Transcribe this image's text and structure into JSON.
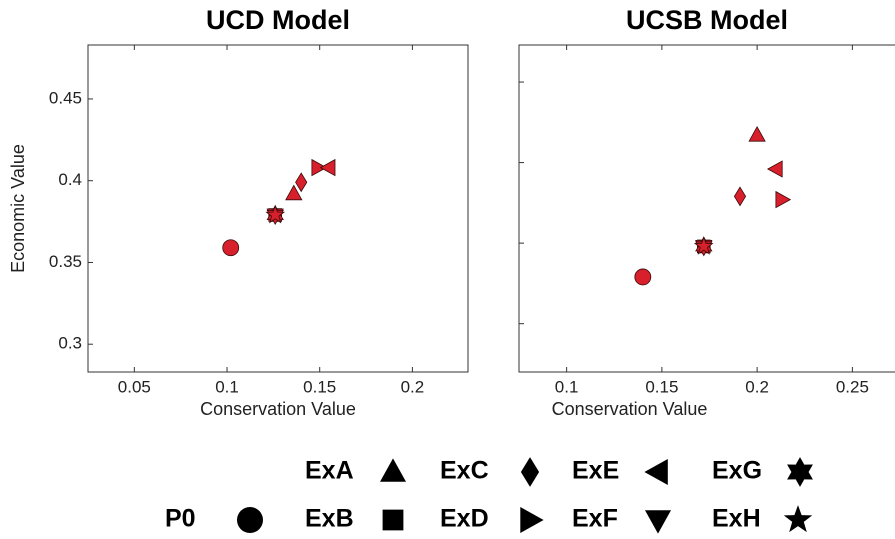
{
  "chart_data": [
    {
      "type": "scatter",
      "title": "UCD Model",
      "xlabel": "Conservation Value",
      "ylabel": "Economic Value",
      "xlim": [
        0.025,
        0.23
      ],
      "xticks": [
        0.05,
        0.1,
        0.15,
        0.2
      ],
      "ylim": [
        0.283,
        0.483
      ],
      "yticks": [
        0.3,
        0.35,
        0.4,
        0.45
      ],
      "ytick_labels": true,
      "series": [
        {
          "name": "P0",
          "marker": "circle",
          "color": "#d7202b",
          "x": [
            0.102
          ],
          "values": [
            0.359
          ]
        },
        {
          "name": "ExA",
          "marker": "triangle-up",
          "color": "#d7202b",
          "x": [
            0.136
          ],
          "values": [
            0.392
          ]
        },
        {
          "name": "ExB",
          "marker": "square",
          "color": "#d7202b",
          "x": [
            0.126
          ],
          "values": [
            0.379
          ]
        },
        {
          "name": "ExC",
          "marker": "diamond",
          "color": "#d7202b",
          "x": [
            0.14
          ],
          "values": [
            0.399
          ]
        },
        {
          "name": "ExD",
          "marker": "triangle-right",
          "color": "#d7202b",
          "x": [
            0.149
          ],
          "values": [
            0.408
          ]
        },
        {
          "name": "ExE",
          "marker": "triangle-left",
          "color": "#d7202b",
          "x": [
            0.155
          ],
          "values": [
            0.408
          ]
        },
        {
          "name": "ExF",
          "marker": "triangle-down",
          "color": "#d7202b",
          "x": [
            0.126
          ],
          "values": [
            0.379
          ]
        },
        {
          "name": "ExG",
          "marker": "hexagram",
          "color": "#d7202b",
          "x": [
            0.126
          ],
          "values": [
            0.379
          ]
        },
        {
          "name": "ExH",
          "marker": "star",
          "color": "#d7202b",
          "x": [
            0.126
          ],
          "values": [
            0.379
          ]
        }
      ]
    },
    {
      "type": "scatter",
      "title": "UCSB Model",
      "xlabel": "Conservation Value",
      "xlim": [
        0.075,
        0.275
      ],
      "xticks": [
        0.1,
        0.15,
        0.2,
        0.25
      ],
      "ylim": [
        0.32,
        0.523
      ],
      "yticks": [
        0.35,
        0.4,
        0.45,
        0.5
      ],
      "ytick_labels": false,
      "series": [
        {
          "name": "P0",
          "marker": "circle",
          "color": "#d7202b",
          "x": [
            0.14
          ],
          "values": [
            0.379
          ]
        },
        {
          "name": "ExA",
          "marker": "triangle-up",
          "color": "#d7202b",
          "x": [
            0.2
          ],
          "values": [
            0.467
          ]
        },
        {
          "name": "ExB",
          "marker": "square",
          "color": "#d7202b",
          "x": [
            0.172
          ],
          "values": [
            0.398
          ]
        },
        {
          "name": "ExC",
          "marker": "diamond",
          "color": "#d7202b",
          "x": [
            0.191
          ],
          "values": [
            0.429
          ]
        },
        {
          "name": "ExD",
          "marker": "triangle-right",
          "color": "#d7202b",
          "x": [
            0.213
          ],
          "values": [
            0.427
          ]
        },
        {
          "name": "ExE",
          "marker": "triangle-left",
          "color": "#d7202b",
          "x": [
            0.21
          ],
          "values": [
            0.446
          ]
        },
        {
          "name": "ExF",
          "marker": "triangle-down",
          "color": "#d7202b",
          "x": [
            0.172
          ],
          "values": [
            0.398
          ]
        },
        {
          "name": "ExG",
          "marker": "hexagram",
          "color": "#d7202b",
          "x": [
            0.172
          ],
          "values": [
            0.398
          ]
        },
        {
          "name": "ExH",
          "marker": "star",
          "color": "#d7202b",
          "x": [
            0.172
          ],
          "values": [
            0.398
          ]
        }
      ]
    }
  ]
}
